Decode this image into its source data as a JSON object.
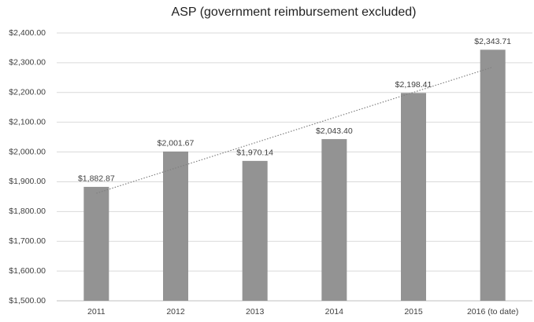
{
  "chart_data": {
    "type": "bar",
    "title": "ASP (government reimbursement excluded)",
    "categories": [
      "2011",
      "2012",
      "2013",
      "2014",
      "2015",
      "2016 (to date)"
    ],
    "values": [
      1882.87,
      2001.67,
      1970.14,
      2043.4,
      2198.41,
      2343.71
    ],
    "value_labels": [
      "$1,882.87",
      "$2,001.67",
      "$1,970.14",
      "$2,043.40",
      "$2,198.41",
      "$2,343.71"
    ],
    "color": "#939393",
    "ylim": [
      1500,
      2400
    ],
    "yticks": [
      {
        "value": 1500,
        "label": "$1,500.00"
      },
      {
        "value": 1600,
        "label": "$1,600.00"
      },
      {
        "value": 1700,
        "label": "$1,700.00"
      },
      {
        "value": 1800,
        "label": "$1,800.00"
      },
      {
        "value": 1900,
        "label": "$1,900.00"
      },
      {
        "value": 2000,
        "label": "$2,000.00"
      },
      {
        "value": 2100,
        "label": "$2,100.00"
      },
      {
        "value": 2200,
        "label": "$2,200.00"
      },
      {
        "value": 2300,
        "label": "$2,300.00"
      },
      {
        "value": 2400,
        "label": "$2,400.00"
      }
    ],
    "grid": true,
    "trendline": "linear"
  }
}
